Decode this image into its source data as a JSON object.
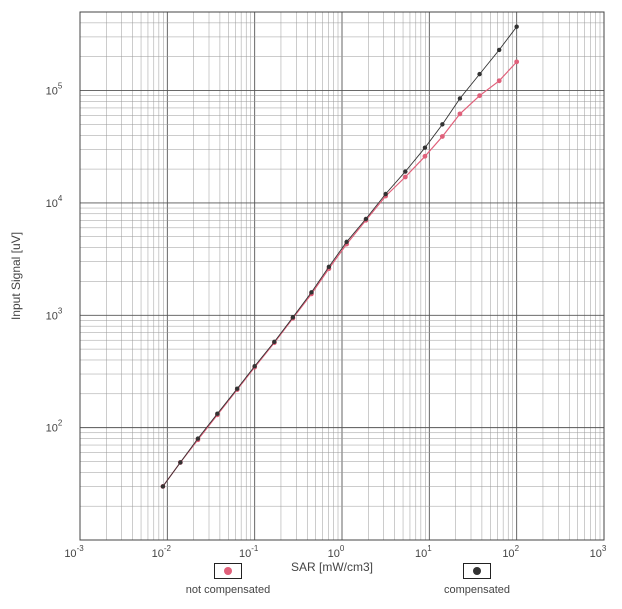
{
  "chart_data": {
    "type": "scatter",
    "xlabel": "SAR [mW/cm3]",
    "ylabel": "Input Signal [uV]",
    "xscale": "log",
    "yscale": "log",
    "xlim": [
      0.001,
      1000
    ],
    "ylim": [
      10,
      500000
    ],
    "grid": true,
    "legend_placement": "bottom",
    "x_tick_labels": [
      {
        "base": "10",
        "exp": "-3"
      },
      {
        "base": "10",
        "exp": "-2"
      },
      {
        "base": "10",
        "exp": "-1"
      },
      {
        "base": "10",
        "exp": "0"
      },
      {
        "base": "10",
        "exp": "1"
      },
      {
        "base": "10",
        "exp": "2"
      },
      {
        "base": "10",
        "exp": "3"
      }
    ],
    "y_tick_labels": [
      {
        "base": "10",
        "exp": "2"
      },
      {
        "base": "10",
        "exp": "3"
      },
      {
        "base": "10",
        "exp": "4"
      },
      {
        "base": "10",
        "exp": "5"
      }
    ],
    "series": [
      {
        "name": "not compensated",
        "color": "#e0607a",
        "x": [
          0.0089,
          0.0141,
          0.0224,
          0.0374,
          0.0631,
          0.1,
          0.168,
          0.274,
          0.447,
          0.708,
          1.13,
          1.88,
          3.16,
          5.31,
          8.91,
          14.1,
          22.4,
          37.6,
          63.1,
          100
        ],
        "y": [
          30,
          49,
          78,
          130,
          218,
          345,
          570,
          940,
          1550,
          2600,
          4300,
          7000,
          11500,
          17000,
          26000,
          39000,
          62000,
          90000,
          122000,
          180000
        ]
      },
      {
        "name": "compensated",
        "color": "#333333",
        "x": [
          0.0089,
          0.0141,
          0.0224,
          0.0374,
          0.0631,
          0.1,
          0.168,
          0.274,
          0.447,
          0.708,
          1.13,
          1.88,
          3.16,
          5.31,
          8.91,
          14.1,
          22.4,
          37.6,
          63.1,
          100
        ],
        "y": [
          30,
          49,
          80,
          133,
          222,
          352,
          580,
          960,
          1600,
          2700,
          4500,
          7200,
          12000,
          19000,
          31000,
          50000,
          85000,
          140000,
          230000,
          370000
        ]
      }
    ]
  },
  "legend": [
    {
      "label": "not compensated",
      "color": "#e0607a"
    },
    {
      "label": "compensated",
      "color": "#333333"
    }
  ]
}
